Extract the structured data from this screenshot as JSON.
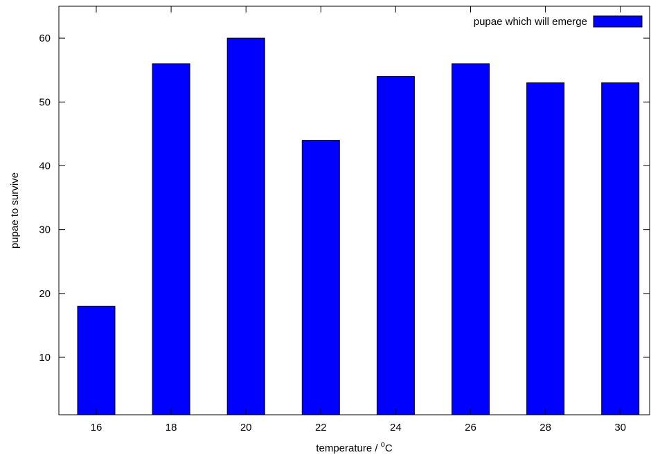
{
  "chart_data": {
    "type": "bar",
    "categories": [
      "16",
      "18",
      "20",
      "22",
      "24",
      "26",
      "28",
      "30"
    ],
    "series": [
      {
        "name": "pupae which will emerge",
        "values": [
          18,
          56,
          60,
          44,
          54,
          56,
          53,
          53
        ],
        "color": "#0000ff"
      }
    ],
    "xlabel": "temperature / °C",
    "xlabel_parts": {
      "prefix": "temperature / ",
      "superscript": "o",
      "suffix": "C"
    },
    "ylabel": "pupae to survive",
    "ylim": [
      1,
      65
    ],
    "yticks": [
      "10",
      "20",
      "30",
      "40",
      "50",
      "60"
    ],
    "grid": false,
    "legend_position": "top-right"
  }
}
